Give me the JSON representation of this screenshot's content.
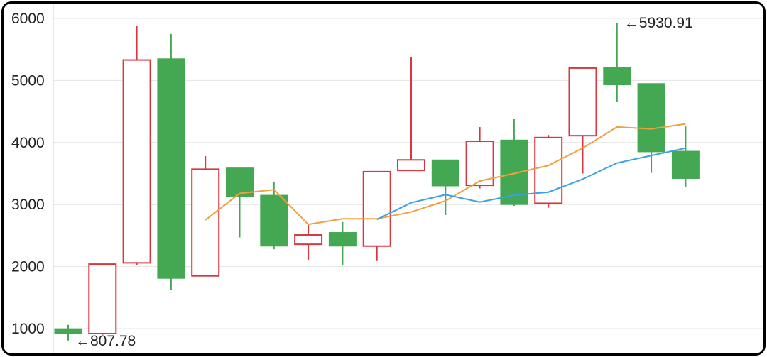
{
  "chart_data": {
    "type": "candlestick",
    "ylim": [
      700,
      6150
    ],
    "yticks": [
      1000,
      2000,
      3000,
      4000,
      5000,
      6000
    ],
    "ytick_labels": [
      "1000",
      "2000",
      "3000",
      "4000",
      "5000",
      "6000"
    ],
    "grid": true,
    "candles": [
      {
        "open": 998,
        "close": 920,
        "high": 1060,
        "low": 807.78
      },
      {
        "open": 920,
        "close": 2040,
        "high": 2040,
        "low": 900
      },
      {
        "open": 2060,
        "close": 5330,
        "high": 5880,
        "low": 2030
      },
      {
        "open": 5350,
        "close": 1810,
        "high": 5750,
        "low": 1620
      },
      {
        "open": 1850,
        "close": 3570,
        "high": 3780,
        "low": 1850
      },
      {
        "open": 3590,
        "close": 3130,
        "high": 3590,
        "low": 2470
      },
      {
        "open": 3150,
        "close": 2330,
        "high": 3370,
        "low": 2280
      },
      {
        "open": 2360,
        "close": 2510,
        "high": 2680,
        "low": 2110
      },
      {
        "open": 2550,
        "close": 2330,
        "high": 2720,
        "low": 2030
      },
      {
        "open": 2330,
        "close": 3530,
        "high": 3530,
        "low": 2090
      },
      {
        "open": 3550,
        "close": 3720,
        "high": 5370,
        "low": 3550
      },
      {
        "open": 3720,
        "close": 3300,
        "high": 3720,
        "low": 2830
      },
      {
        "open": 3310,
        "close": 4020,
        "high": 4250,
        "low": 3260
      },
      {
        "open": 4040,
        "close": 3000,
        "high": 4380,
        "low": 2980
      },
      {
        "open": 3020,
        "close": 4080,
        "high": 4120,
        "low": 2950
      },
      {
        "open": 4110,
        "close": 5200,
        "high": 5200,
        "low": 3500
      },
      {
        "open": 5210,
        "close": 4930,
        "high": 5930.91,
        "low": 4650
      },
      {
        "open": 4950,
        "close": 3850,
        "high": 4950,
        "low": 3510
      },
      {
        "open": 3860,
        "close": 3420,
        "high": 4260,
        "low": 3280
      }
    ],
    "ma_series": [
      {
        "color": "#f0a040",
        "values": [
          null,
          null,
          null,
          null,
          2750,
          3180,
          3240,
          2680,
          2770,
          2770,
          2880,
          3060,
          3380,
          3500,
          3630,
          3910,
          4250,
          4220,
          4300
        ]
      },
      {
        "color": "#3aa0e8",
        "values": [
          null,
          null,
          null,
          null,
          null,
          null,
          null,
          null,
          null,
          2760,
          3030,
          3160,
          3040,
          3150,
          3200,
          3410,
          3670,
          3790,
          3910
        ]
      }
    ],
    "annotations": [
      {
        "text": "←807.78",
        "candle_index": 0,
        "value": 807.78
      },
      {
        "text": "←5930.91",
        "candle_index": 16,
        "value": 5930.91
      }
    ],
    "colors": {
      "up": "#d9363e",
      "down": "#44a853",
      "grid": "#e4e4e4",
      "axis": "#cccccc"
    }
  }
}
